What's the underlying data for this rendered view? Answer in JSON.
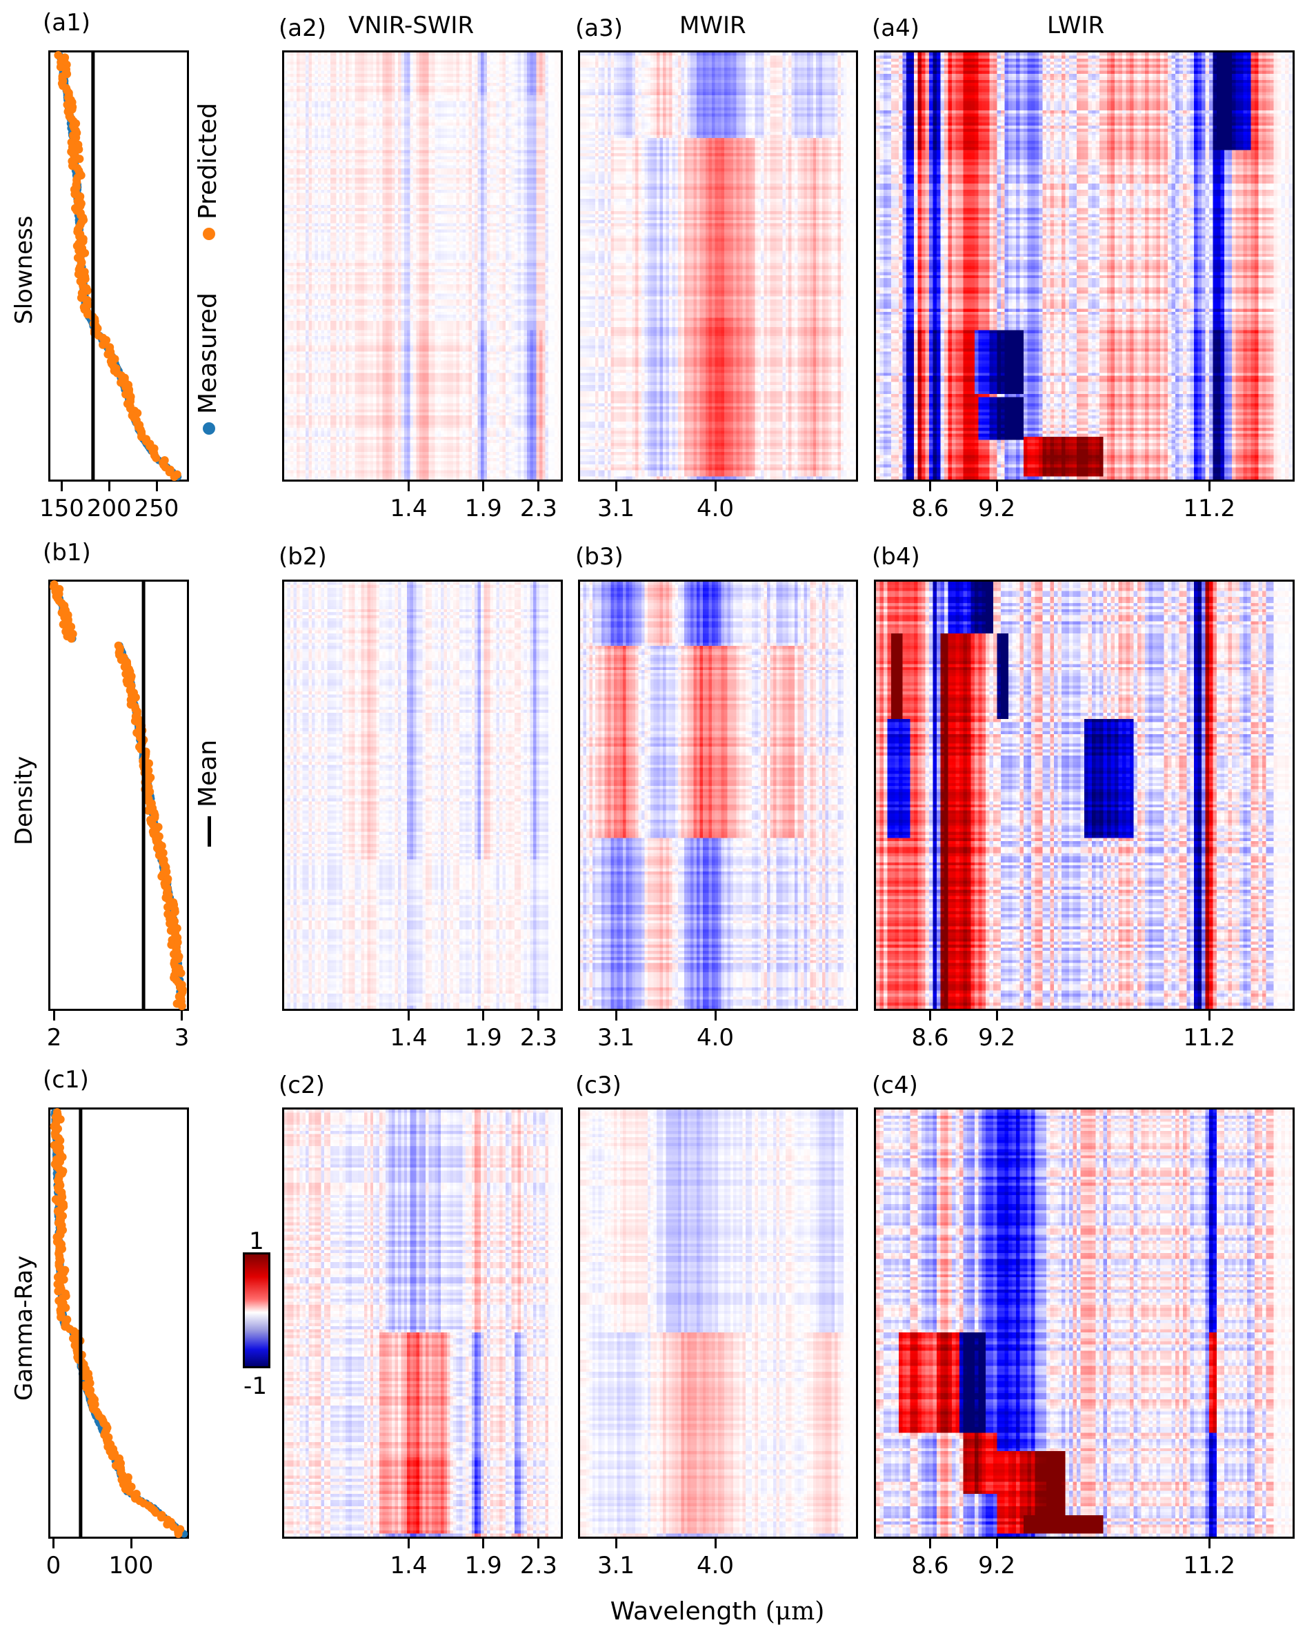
{
  "figure": {
    "xlabel_prefix": "Wavelength ",
    "xlabel_unit": "(μm)",
    "colors": {
      "measured": "#1f77b4",
      "predicted": "#ff7f0e",
      "mean_line": "#000000",
      "cmap_neg_dark": "#000070",
      "cmap_neg": "#0000ff",
      "cmap_zero": "#ffffff",
      "cmap_pos": "#ff0000",
      "cmap_pos_dark": "#800000"
    },
    "legend": {
      "measured": "Measured",
      "predicted": "Predicted",
      "mean": "Mean"
    },
    "colorbar": {
      "max_label": "1",
      "min_label": "-1",
      "vmin": -1,
      "vmax": 1
    },
    "band_titles": {
      "vnir_swir": "VNIR-SWIR",
      "mwir": "MWIR",
      "lwir": "LWIR"
    }
  },
  "chart_data": [
    {
      "id": "a1",
      "label": "(a1)",
      "type": "scatter",
      "ylabel": "Slowness",
      "xlim": [
        138,
        282
      ],
      "xticks": [
        150,
        200,
        250
      ],
      "xtick_labels": [
        "150",
        "200",
        "250"
      ],
      "mean": 183,
      "series": [
        {
          "name": "Measured",
          "profile": [
            [
              0,
              148
            ],
            [
              0.05,
              152
            ],
            [
              0.1,
              156
            ],
            [
              0.2,
              162
            ],
            [
              0.3,
              166
            ],
            [
              0.4,
              168
            ],
            [
              0.5,
              171
            ],
            [
              0.6,
              175
            ],
            [
              0.65,
              185
            ],
            [
              0.72,
              205
            ],
            [
              0.78,
              215
            ],
            [
              0.83,
              222
            ],
            [
              0.88,
              230
            ],
            [
              0.92,
              238
            ],
            [
              0.96,
              252
            ],
            [
              1.0,
              272
            ]
          ]
        },
        {
          "name": "Predicted",
          "profile": [
            [
              0,
              150
            ],
            [
              0.05,
              153
            ],
            [
              0.1,
              157
            ],
            [
              0.2,
              163
            ],
            [
              0.3,
              167
            ],
            [
              0.4,
              169
            ],
            [
              0.5,
              171
            ],
            [
              0.6,
              176
            ],
            [
              0.65,
              186
            ],
            [
              0.72,
              204
            ],
            [
              0.78,
              216
            ],
            [
              0.83,
              223
            ],
            [
              0.88,
              231
            ],
            [
              0.92,
              240
            ],
            [
              0.96,
              254
            ],
            [
              1.0,
              270
            ]
          ]
        }
      ]
    },
    {
      "id": "b1",
      "label": "(b1)",
      "type": "scatter",
      "ylabel": "Density",
      "xlim": [
        1.97,
        3.04
      ],
      "xticks": [
        2,
        3
      ],
      "xtick_labels": [
        "2",
        "3"
      ],
      "mean": 2.7,
      "series": [
        {
          "name": "Measured",
          "profile": [
            [
              0,
              2.0
            ],
            [
              0.05,
              2.06
            ],
            [
              0.1,
              2.1
            ],
            [
              0.13,
              2.15
            ],
            [
              0.14,
              2.5
            ],
            [
              0.2,
              2.58
            ],
            [
              0.3,
              2.64
            ],
            [
              0.4,
              2.69
            ],
            [
              0.5,
              2.75
            ],
            [
              0.6,
              2.8
            ],
            [
              0.7,
              2.88
            ],
            [
              0.8,
              2.94
            ],
            [
              0.9,
              2.97
            ],
            [
              1.0,
              3.0
            ]
          ]
        },
        {
          "name": "Predicted",
          "profile": [
            [
              0,
              2.01
            ],
            [
              0.05,
              2.07
            ],
            [
              0.1,
              2.1
            ],
            [
              0.13,
              2.14
            ],
            [
              0.14,
              2.5
            ],
            [
              0.2,
              2.58
            ],
            [
              0.3,
              2.63
            ],
            [
              0.4,
              2.7
            ],
            [
              0.5,
              2.75
            ],
            [
              0.6,
              2.8
            ],
            [
              0.7,
              2.87
            ],
            [
              0.8,
              2.93
            ],
            [
              0.9,
              2.96
            ],
            [
              1.0,
              2.99
            ]
          ]
        }
      ]
    },
    {
      "id": "c1",
      "label": "(c1)",
      "type": "scatter",
      "ylabel": "Gamma-Ray",
      "xlim": [
        -4,
        172
      ],
      "xticks": [
        0,
        100
      ],
      "xtick_labels": [
        "0",
        "100"
      ],
      "mean": 35,
      "series": [
        {
          "name": "Measured",
          "profile": [
            [
              0,
              2
            ],
            [
              0.2,
              6
            ],
            [
              0.4,
              9
            ],
            [
              0.5,
              13
            ],
            [
              0.52,
              25
            ],
            [
              0.6,
              35
            ],
            [
              0.7,
              50
            ],
            [
              0.78,
              70
            ],
            [
              0.85,
              85
            ],
            [
              0.9,
              95
            ],
            [
              0.94,
              130
            ],
            [
              1.0,
              168
            ]
          ]
        },
        {
          "name": "Predicted",
          "profile": [
            [
              0,
              5
            ],
            [
              0.2,
              8
            ],
            [
              0.4,
              10
            ],
            [
              0.5,
              14
            ],
            [
              0.52,
              28
            ],
            [
              0.6,
              37
            ],
            [
              0.7,
              52
            ],
            [
              0.78,
              72
            ],
            [
              0.85,
              88
            ],
            [
              0.9,
              98
            ],
            [
              0.94,
              128
            ],
            [
              1.0,
              165
            ]
          ]
        }
      ]
    },
    {
      "id": "a2",
      "label": "(a2)",
      "type": "heatmap",
      "band": "vnir_swir",
      "title": "VNIR-SWIR",
      "xticks": [
        1.4,
        1.9,
        2.3
      ],
      "xtick_pos": [
        0.45,
        0.72,
        0.92
      ],
      "xtick_labels": [
        "1.4",
        "1.9",
        "2.3"
      ],
      "vmin": -1,
      "vmax": 1,
      "intensity": 0.35,
      "columns": [
        [
          0.35,
          0.05,
          0.3
        ],
        [
          0.45,
          0.02,
          -0.5
        ],
        [
          0.5,
          0.04,
          0.4
        ],
        [
          0.72,
          0.015,
          -0.7
        ],
        [
          0.9,
          0.015,
          -0.9
        ],
        [
          0.93,
          0.01,
          0.8
        ],
        [
          0.6,
          0.05,
          0.3
        ]
      ],
      "row_blocks": [
        [
          0.0,
          0.1,
          0.8
        ],
        [
          0.65,
          1.0,
          1.0
        ],
        [
          0.1,
          0.65,
          0.5
        ]
      ]
    },
    {
      "id": "a3",
      "label": "(a3)",
      "type": "heatmap",
      "band": "mwir",
      "title": "MWIR",
      "xticks": [
        3.1,
        4.0
      ],
      "xtick_pos": [
        0.13,
        0.49
      ],
      "xtick_labels": [
        "3.1",
        "4.0"
      ],
      "vmin": -1,
      "vmax": 1,
      "intensity": 0.45,
      "columns": [
        [
          0.25,
          0.1,
          0.5
        ],
        [
          0.5,
          0.12,
          -0.7
        ],
        [
          0.2,
          0.08,
          -0.5
        ],
        [
          0.85,
          0.08,
          -0.3
        ]
      ],
      "row_blocks": [
        [
          0.0,
          0.2,
          1.0
        ],
        [
          0.2,
          0.62,
          -1.0
        ],
        [
          0.62,
          1.0,
          -1.3
        ]
      ]
    },
    {
      "id": "a4",
      "label": "(a4)",
      "type": "heatmap",
      "band": "lwir",
      "title": "LWIR",
      "xticks": [
        8.6,
        9.2,
        11.2
      ],
      "xtick_pos": [
        0.13,
        0.29,
        0.8
      ],
      "xtick_labels": [
        "8.6",
        "9.2",
        "11.2"
      ],
      "vmin": -1,
      "vmax": 1,
      "intensity": 1.0,
      "columns": [
        [
          0.08,
          0.012,
          -1.0
        ],
        [
          0.1,
          0.012,
          0.9
        ],
        [
          0.14,
          0.015,
          -1.0
        ],
        [
          0.22,
          0.08,
          0.6
        ],
        [
          0.33,
          0.06,
          -0.3
        ],
        [
          0.8,
          0.012,
          1.0
        ],
        [
          0.81,
          0.04,
          -1.0
        ],
        [
          0.9,
          0.05,
          0.4
        ],
        [
          0.6,
          0.06,
          0.25
        ]
      ],
      "row_blocks": [
        [
          0.0,
          0.23,
          1.0
        ],
        [
          0.23,
          0.65,
          0.7
        ],
        [
          0.65,
          0.81,
          1.0
        ],
        [
          0.81,
          1.0,
          1.0
        ]
      ],
      "patches": [
        [
          0.23,
          0.35,
          0.65,
          0.8,
          -1.0
        ],
        [
          0.35,
          0.55,
          0.9,
          1.0,
          0.9
        ],
        [
          0.24,
          0.35,
          0.81,
          0.91,
          -1.0
        ],
        [
          0.82,
          0.9,
          0.0,
          0.23,
          -1.0
        ]
      ]
    },
    {
      "id": "b2",
      "label": "(b2)",
      "type": "heatmap",
      "band": "vnir_swir",
      "xticks": [
        1.4,
        1.9,
        2.3
      ],
      "xtick_pos": [
        0.45,
        0.72,
        0.92
      ],
      "xtick_labels": [
        "1.4",
        "1.9",
        "2.3"
      ],
      "vmin": -1,
      "vmax": 1,
      "intensity": 0.3,
      "columns": [
        [
          0.46,
          0.015,
          -0.7
        ],
        [
          0.71,
          0.015,
          -0.8
        ],
        [
          0.73,
          0.015,
          0.6
        ],
        [
          0.91,
          0.01,
          -0.6
        ],
        [
          0.3,
          0.05,
          0.3
        ]
      ],
      "row_blocks": [
        [
          0.0,
          0.65,
          1.0
        ],
        [
          0.65,
          1.0,
          0.4
        ]
      ]
    },
    {
      "id": "b3",
      "label": "(b3)",
      "type": "heatmap",
      "band": "mwir",
      "xticks": [
        3.1,
        4.0
      ],
      "xtick_pos": [
        0.13,
        0.49
      ],
      "xtick_labels": [
        "3.1",
        "4.0"
      ],
      "vmin": -1,
      "vmax": 1,
      "intensity": 0.55,
      "columns": [
        [
          0.15,
          0.08,
          -0.7
        ],
        [
          0.45,
          0.1,
          -0.8
        ],
        [
          0.3,
          0.1,
          0.4
        ],
        [
          0.75,
          0.06,
          -0.3
        ]
      ],
      "row_blocks": [
        [
          0.0,
          0.15,
          1.0
        ],
        [
          0.15,
          0.6,
          -0.9
        ],
        [
          0.6,
          1.0,
          0.7
        ]
      ]
    },
    {
      "id": "b4",
      "label": "(b4)",
      "type": "heatmap",
      "band": "lwir",
      "xticks": [
        8.6,
        9.2,
        11.2
      ],
      "xtick_pos": [
        0.13,
        0.29,
        0.8
      ],
      "xtick_labels": [
        "8.6",
        "9.2",
        "11.2"
      ],
      "vmin": -1,
      "vmax": 1,
      "intensity": 1.0,
      "columns": [
        [
          0.14,
          0.014,
          -1.0
        ],
        [
          0.16,
          0.012,
          1.0
        ],
        [
          0.2,
          0.05,
          0.7
        ],
        [
          0.8,
          0.012,
          1.0
        ],
        [
          0.78,
          0.015,
          -1.0
        ],
        [
          0.07,
          0.06,
          0.5
        ]
      ],
      "row_blocks": [
        [
          0.0,
          0.12,
          1.0
        ],
        [
          0.12,
          0.32,
          1.0
        ],
        [
          0.32,
          0.6,
          1.0
        ],
        [
          0.6,
          1.0,
          1.0
        ]
      ],
      "patches": [
        [
          0.15,
          0.28,
          0.0,
          0.12,
          -1.3
        ],
        [
          0.02,
          0.08,
          0.32,
          0.6,
          -1.0
        ],
        [
          0.29,
          0.32,
          0.12,
          0.32,
          -1.0
        ],
        [
          0.5,
          0.62,
          0.32,
          0.6,
          -0.8
        ],
        [
          0.03,
          0.06,
          0.12,
          0.32,
          0.9
        ]
      ]
    },
    {
      "id": "c2",
      "label": "(c2)",
      "type": "heatmap",
      "band": "vnir_swir",
      "xticks": [
        1.4,
        1.9,
        2.3
      ],
      "xtick_pos": [
        0.45,
        0.72,
        0.92
      ],
      "xtick_labels": [
        "1.4",
        "1.9",
        "2.3"
      ],
      "vmin": -1,
      "vmax": 1,
      "intensity": 0.55,
      "columns": [
        [
          0.38,
          0.04,
          -0.3
        ],
        [
          0.47,
          0.04,
          -0.6
        ],
        [
          0.56,
          0.04,
          -0.4
        ],
        [
          0.7,
          0.015,
          0.6
        ],
        [
          0.85,
          0.015,
          0.4
        ]
      ],
      "row_blocks": [
        [
          0.0,
          0.52,
          0.6
        ],
        [
          0.52,
          0.82,
          -1.2
        ],
        [
          0.82,
          1.0,
          -1.6
        ]
      ]
    },
    {
      "id": "c3",
      "label": "(c3)",
      "type": "heatmap",
      "band": "mwir",
      "xticks": [
        3.1,
        4.0
      ],
      "xtick_pos": [
        0.13,
        0.49
      ],
      "xtick_labels": [
        "3.1",
        "4.0"
      ],
      "vmin": -1,
      "vmax": 1,
      "intensity": 0.3,
      "columns": [
        [
          0.4,
          0.15,
          -0.6
        ],
        [
          0.2,
          0.1,
          0.3
        ],
        [
          0.9,
          0.05,
          -0.4
        ]
      ],
      "row_blocks": [
        [
          0.0,
          0.52,
          0.8
        ],
        [
          0.52,
          1.0,
          -1.0
        ]
      ]
    },
    {
      "id": "c4",
      "label": "(c4)",
      "type": "heatmap",
      "band": "lwir",
      "xticks": [
        8.6,
        9.2,
        11.2
      ],
      "xtick_pos": [
        0.13,
        0.29,
        0.8
      ],
      "xtick_labels": [
        "8.6",
        "9.2",
        "11.2"
      ],
      "vmin": -1,
      "vmax": 1,
      "intensity": 1.0,
      "columns": [
        [
          0.33,
          0.07,
          -0.65
        ],
        [
          0.81,
          0.01,
          -0.85
        ],
        [
          0.14,
          0.015,
          -0.5
        ],
        [
          0.15,
          0.015,
          0.5
        ]
      ],
      "row_blocks": [
        [
          0.0,
          0.52,
          1.0
        ],
        [
          0.52,
          0.76,
          1.0
        ],
        [
          0.76,
          1.0,
          1.0
        ]
      ],
      "patches": [
        [
          0.05,
          0.2,
          0.52,
          0.76,
          0.6
        ],
        [
          0.2,
          0.26,
          0.52,
          0.76,
          -0.9
        ],
        [
          0.8,
          0.82,
          0.52,
          0.76,
          1.3
        ],
        [
          0.29,
          0.45,
          0.8,
          1.0,
          1.2
        ],
        [
          0.35,
          0.55,
          0.95,
          1.0,
          1.6
        ],
        [
          0.21,
          0.29,
          0.76,
          0.9,
          1.0
        ]
      ]
    }
  ]
}
